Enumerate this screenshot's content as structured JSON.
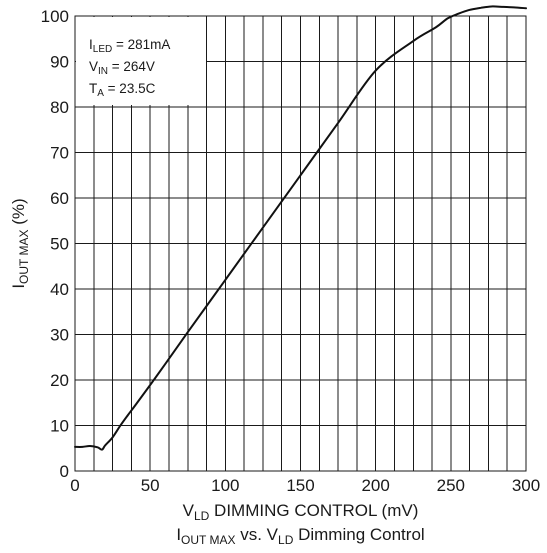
{
  "chart_data": {
    "type": "line",
    "title": {
      "main": "I",
      "main_sub": "OUT MAX",
      "mid": " vs. V",
      "mid_sub": "LD",
      "tail": " Dimming Control"
    },
    "xlabel": {
      "main": "V",
      "sub": "LD",
      "tail": " DIMMING CONTROL (mV)"
    },
    "ylabel": {
      "main": "I",
      "sub": "OUT MAX",
      "tail": " (%)"
    },
    "xlim": [
      0,
      300
    ],
    "ylim": [
      0,
      100
    ],
    "grid": true,
    "x_ticks": [
      {
        "value": 0,
        "label": "0"
      },
      {
        "value": 50,
        "label": "50"
      },
      {
        "value": 100,
        "label": "100"
      },
      {
        "value": 150,
        "label": "150"
      },
      {
        "value": 200,
        "label": "200"
      },
      {
        "value": 250,
        "label": "250"
      },
      {
        "value": 300,
        "label": "300"
      }
    ],
    "x_grid_step": 12.5,
    "y_ticks": [
      {
        "value": 0,
        "label": "0"
      },
      {
        "value": 10,
        "label": "10"
      },
      {
        "value": 20,
        "label": "20"
      },
      {
        "value": 30,
        "label": "30"
      },
      {
        "value": 40,
        "label": "40"
      },
      {
        "value": 50,
        "label": "50"
      },
      {
        "value": 60,
        "label": "60"
      },
      {
        "value": 70,
        "label": "70"
      },
      {
        "value": 80,
        "label": "80"
      },
      {
        "value": 90,
        "label": "90"
      },
      {
        "value": 100,
        "label": "100"
      }
    ],
    "annotations": [
      {
        "main": "I",
        "sub": "LED",
        "tail": " = 281mA"
      },
      {
        "main": "V",
        "sub": "IN",
        "tail": " = 264V"
      },
      {
        "main": "T",
        "sub": "A",
        "tail": " = 23.5C"
      }
    ],
    "legend_position": "top-left",
    "series": [
      {
        "color": "#111111",
        "x": [
          0,
          5,
          10,
          15,
          18,
          20,
          25,
          30,
          35,
          40,
          50,
          60,
          75,
          100,
          125,
          150,
          175,
          200,
          225,
          240,
          248,
          255,
          262,
          270,
          277,
          285,
          292,
          300
        ],
        "y": [
          5.3,
          5.3,
          5.5,
          5.2,
          4.7,
          5.6,
          7.4,
          9.9,
          12.2,
          14.4,
          18.9,
          23.5,
          30.5,
          42.0,
          53.5,
          65.0,
          76.5,
          88.0,
          94.5,
          97.5,
          99.5,
          100.5,
          101.3,
          101.8,
          102.1,
          102.0,
          101.9,
          101.7
        ]
      }
    ]
  }
}
